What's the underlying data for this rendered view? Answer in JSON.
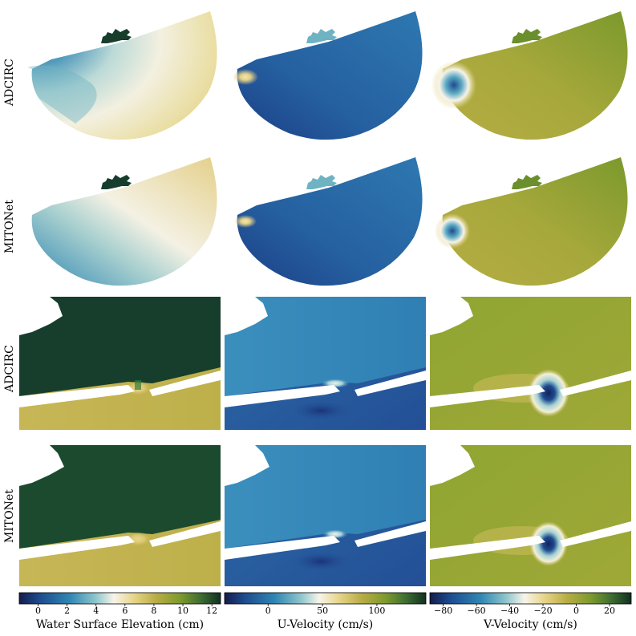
{
  "row_labels": [
    "ADCIRC",
    "MITONet",
    "ADCIRC",
    "MITONet"
  ],
  "colorbars": [
    {
      "label": "Water Surface Elevation (cm)",
      "colormap": "gist_earth-like",
      "ticks": [
        "0",
        "2",
        "4",
        "6",
        "8",
        "10",
        "12"
      ],
      "range": [
        -1.3,
        12.6
      ],
      "colors": [
        "#151c4c",
        "#1d4b8f",
        "#2f86b3",
        "#7fc0c9",
        "#f7f4ea",
        "#e7d488",
        "#b8ad45",
        "#7d9a2d",
        "#3f6e33",
        "#10301f"
      ]
    },
    {
      "label": "U-Velocity (cm/s)",
      "ticks": [
        "0",
        "50",
        "100"
      ],
      "range": [
        -40,
        145
      ],
      "colors": [
        "#151c4c",
        "#1d4b8f",
        "#2f86b3",
        "#7fc0c9",
        "#f7f4ea",
        "#e7d488",
        "#b8ad45",
        "#7d9a2d",
        "#3f6e33",
        "#10301f"
      ]
    },
    {
      "label": "V-Velocity (cm/s)",
      "ticks": [
        "−80",
        "−60",
        "−40",
        "−20",
        "0",
        "20"
      ],
      "range": [
        -88,
        33
      ],
      "colors": [
        "#151c4c",
        "#1d4b8f",
        "#2f86b3",
        "#7fc0c9",
        "#f7f4ea",
        "#e7d488",
        "#b8ad45",
        "#7d9a2d",
        "#3f6e33",
        "#10301f"
      ]
    }
  ],
  "panel_colors": {
    "wse_top_left": "#1f5a8a",
    "wse_top_mid": "#e6f0ea",
    "wse_top_right": "#e8dba0",
    "u_domain": "#2a6fa8",
    "u_dark": "#1c3f86",
    "v_domain": "#a7aa3a",
    "v_green": "#7f9a2c",
    "zoom_wse_upper": "#173d2c",
    "zoom_wse_lower": "#c3b24f",
    "zoom_u_upper": "#3a8cbb",
    "zoom_u_lower": "#2a64a4",
    "zoom_v": "#8ea430",
    "white": "#ffffff"
  }
}
